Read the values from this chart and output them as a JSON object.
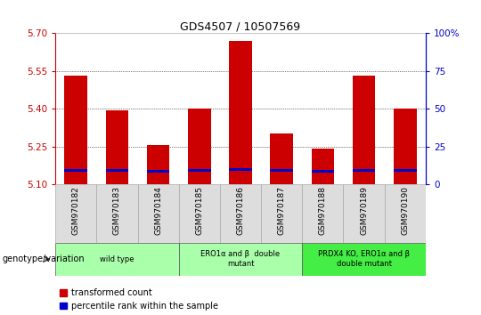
{
  "title": "GDS4507 / 10507569",
  "samples": [
    "GSM970182",
    "GSM970183",
    "GSM970184",
    "GSM970185",
    "GSM970186",
    "GSM970187",
    "GSM970188",
    "GSM970189",
    "GSM970190"
  ],
  "transformed_count": [
    5.53,
    5.395,
    5.255,
    5.4,
    5.67,
    5.3,
    5.24,
    5.53,
    5.4
  ],
  "percentile_rank_values": [
    5.15,
    5.148,
    5.146,
    5.148,
    5.152,
    5.148,
    5.146,
    5.148,
    5.148
  ],
  "y_min": 5.1,
  "y_max": 5.7,
  "y_ticks": [
    5.1,
    5.25,
    5.4,
    5.55,
    5.7
  ],
  "right_y_ticks": [
    0,
    25,
    50,
    75,
    100
  ],
  "bar_color": "#cc0000",
  "percentile_color": "#0000cc",
  "background_color": "#ffffff",
  "left_axis_color": "#cc0000",
  "right_axis_color": "#0000cc",
  "sample_bg": "#dddddd",
  "groups": [
    {
      "label": "wild type",
      "indices": [
        0,
        1,
        2
      ],
      "color": "#aaffaa"
    },
    {
      "label": "ERO1α and β  double\nmutant",
      "indices": [
        3,
        4,
        5
      ],
      "color": "#aaffaa"
    },
    {
      "label": "PRDX4 KO, ERO1α and β\ndouble mutant",
      "indices": [
        6,
        7,
        8
      ],
      "color": "#44ee44"
    }
  ],
  "xlabel_genotype": "genotype/variation",
  "legend_items": [
    "transformed count",
    "percentile rank within the sample"
  ],
  "bar_width": 0.55,
  "base_value": 5.1
}
